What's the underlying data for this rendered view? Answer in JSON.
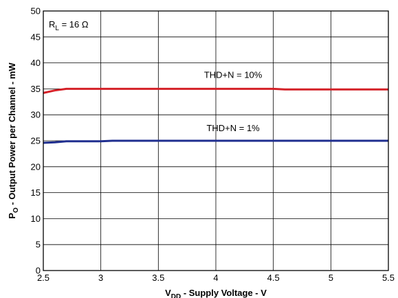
{
  "chart_data": {
    "type": "line",
    "xlabel": {
      "main": "V",
      "sub": "DD",
      "rest": " - Supply Voltage - V"
    },
    "ylabel": {
      "main": "P",
      "sub": "O",
      "rest": " - Output Power per Channel - mW"
    },
    "xlim": [
      2.5,
      5.5
    ],
    "ylim": [
      0,
      50
    ],
    "x_ticks": [
      "2.5",
      "3",
      "3.5",
      "4",
      "4.5",
      "5",
      "5.5"
    ],
    "y_ticks": [
      "0",
      "5",
      "10",
      "15",
      "20",
      "25",
      "30",
      "35",
      "40",
      "45",
      "50"
    ],
    "grid": true,
    "annotations": {
      "condition": {
        "main": "R",
        "sub": "L",
        "rest": " = 16 Ω"
      },
      "series_10": "THD+N = 10%",
      "series_1": "THD+N = 1%"
    },
    "series": [
      {
        "name": "THD+N = 10%",
        "color": "#d42027",
        "x": [
          2.5,
          2.6,
          2.7,
          3.0,
          3.5,
          4.0,
          4.5,
          4.6,
          5.0,
          5.5
        ],
        "y": [
          34.2,
          34.7,
          35.0,
          35.0,
          35.0,
          35.0,
          35.0,
          34.9,
          34.9,
          34.9
        ]
      },
      {
        "name": "THD+N = 1%",
        "color": "#1f2e8f",
        "x": [
          2.5,
          2.6,
          2.7,
          3.0,
          3.1,
          3.5,
          4.0,
          4.5,
          5.0,
          5.5
        ],
        "y": [
          24.6,
          24.7,
          24.9,
          24.9,
          25.0,
          25.0,
          25.0,
          25.0,
          25.0,
          25.0
        ]
      }
    ]
  }
}
